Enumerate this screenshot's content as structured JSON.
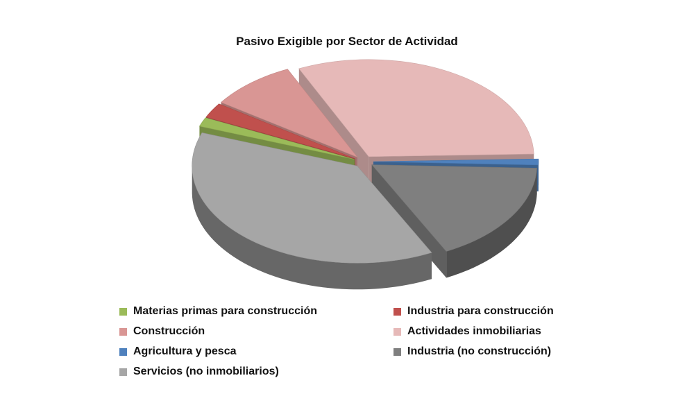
{
  "chart_data": {
    "type": "pie",
    "title": "Pasivo Exigible por Sector de Actividad",
    "legend_position": "bottom",
    "style": "3d-exploded",
    "series": [
      {
        "name": "Materias primas para construcción",
        "value": 1.5,
        "color": "#9bbb59"
      },
      {
        "name": "Industria para construcción",
        "value": 2.5,
        "color": "#c0504d"
      },
      {
        "name": "Construcción",
        "value": 8.5,
        "color": "#d99694"
      },
      {
        "name": "Actividades inmobiliarias",
        "value": 31.5,
        "color": "#e6b9b8"
      },
      {
        "name": "Agricultura y pesca",
        "value": 1.0,
        "color": "#4f81bd"
      },
      {
        "name": "Industria (no construcción)",
        "value": 17.0,
        "color": "#7f7f7f"
      },
      {
        "name": "Servicios (no inmobiliarios)",
        "value": 38.0,
        "color": "#a6a6a6"
      }
    ]
  }
}
